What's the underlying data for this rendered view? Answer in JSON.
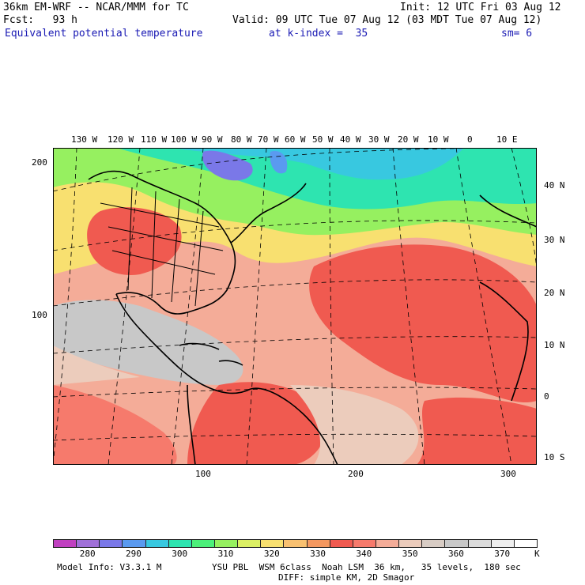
{
  "header": {
    "model": "36km EM-WRF -- NCAR/MMM for TC",
    "init": "Init: 12 UTC Fri 03 Aug 12",
    "fcst": "Fcst:   93 h",
    "valid": "Valid: 09 UTC Tue 07 Aug 12 (03 MDT Tue 07 Aug 12)",
    "field": "Equivalent potential temperature",
    "level": "at k-index =  35",
    "smooth": "sm= 6"
  },
  "map": {
    "top_lon_labels": [
      "130 W",
      "120 W",
      "110 W",
      "100 W",
      "90 W",
      "80 W",
      "70 W",
      "60 W",
      "50 W",
      "40 W",
      "30 W",
      "20 W",
      "10 W",
      "0",
      "10 E"
    ],
    "right_lat_labels": [
      "40 N",
      "30 N",
      "20 N",
      "10 N",
      "0",
      "10 S"
    ],
    "left_grid_labels": [
      "200",
      "100"
    ],
    "bottom_grid_labels": [
      "100",
      "200",
      "300"
    ]
  },
  "colorbar": {
    "unit": "K",
    "labels": [
      "280",
      "290",
      "300",
      "310",
      "320",
      "330",
      "340",
      "350",
      "360",
      "370"
    ],
    "colors": [
      "#c040c0",
      "#a070d8",
      "#7a78e8",
      "#5a9af0",
      "#38c8e0",
      "#2ee4b0",
      "#4cf07a",
      "#96f060",
      "#dcf064",
      "#f8e070",
      "#f8c070",
      "#f49860",
      "#f05a50",
      "#f67a6c",
      "#f4ac98",
      "#ecccbc",
      "#d8ccc4",
      "#c8c8c8",
      "#dcdcdc",
      "#eeeeee",
      "#ffffff"
    ]
  },
  "footer": {
    "model_info": "Model Info: V3.3.1 M",
    "physics1": "YSU PBL  WSM 6class  Noah LSM  36 km,   35 levels,  180 sec",
    "physics2": "DIFF: simple KM, 2D Smagor"
  }
}
